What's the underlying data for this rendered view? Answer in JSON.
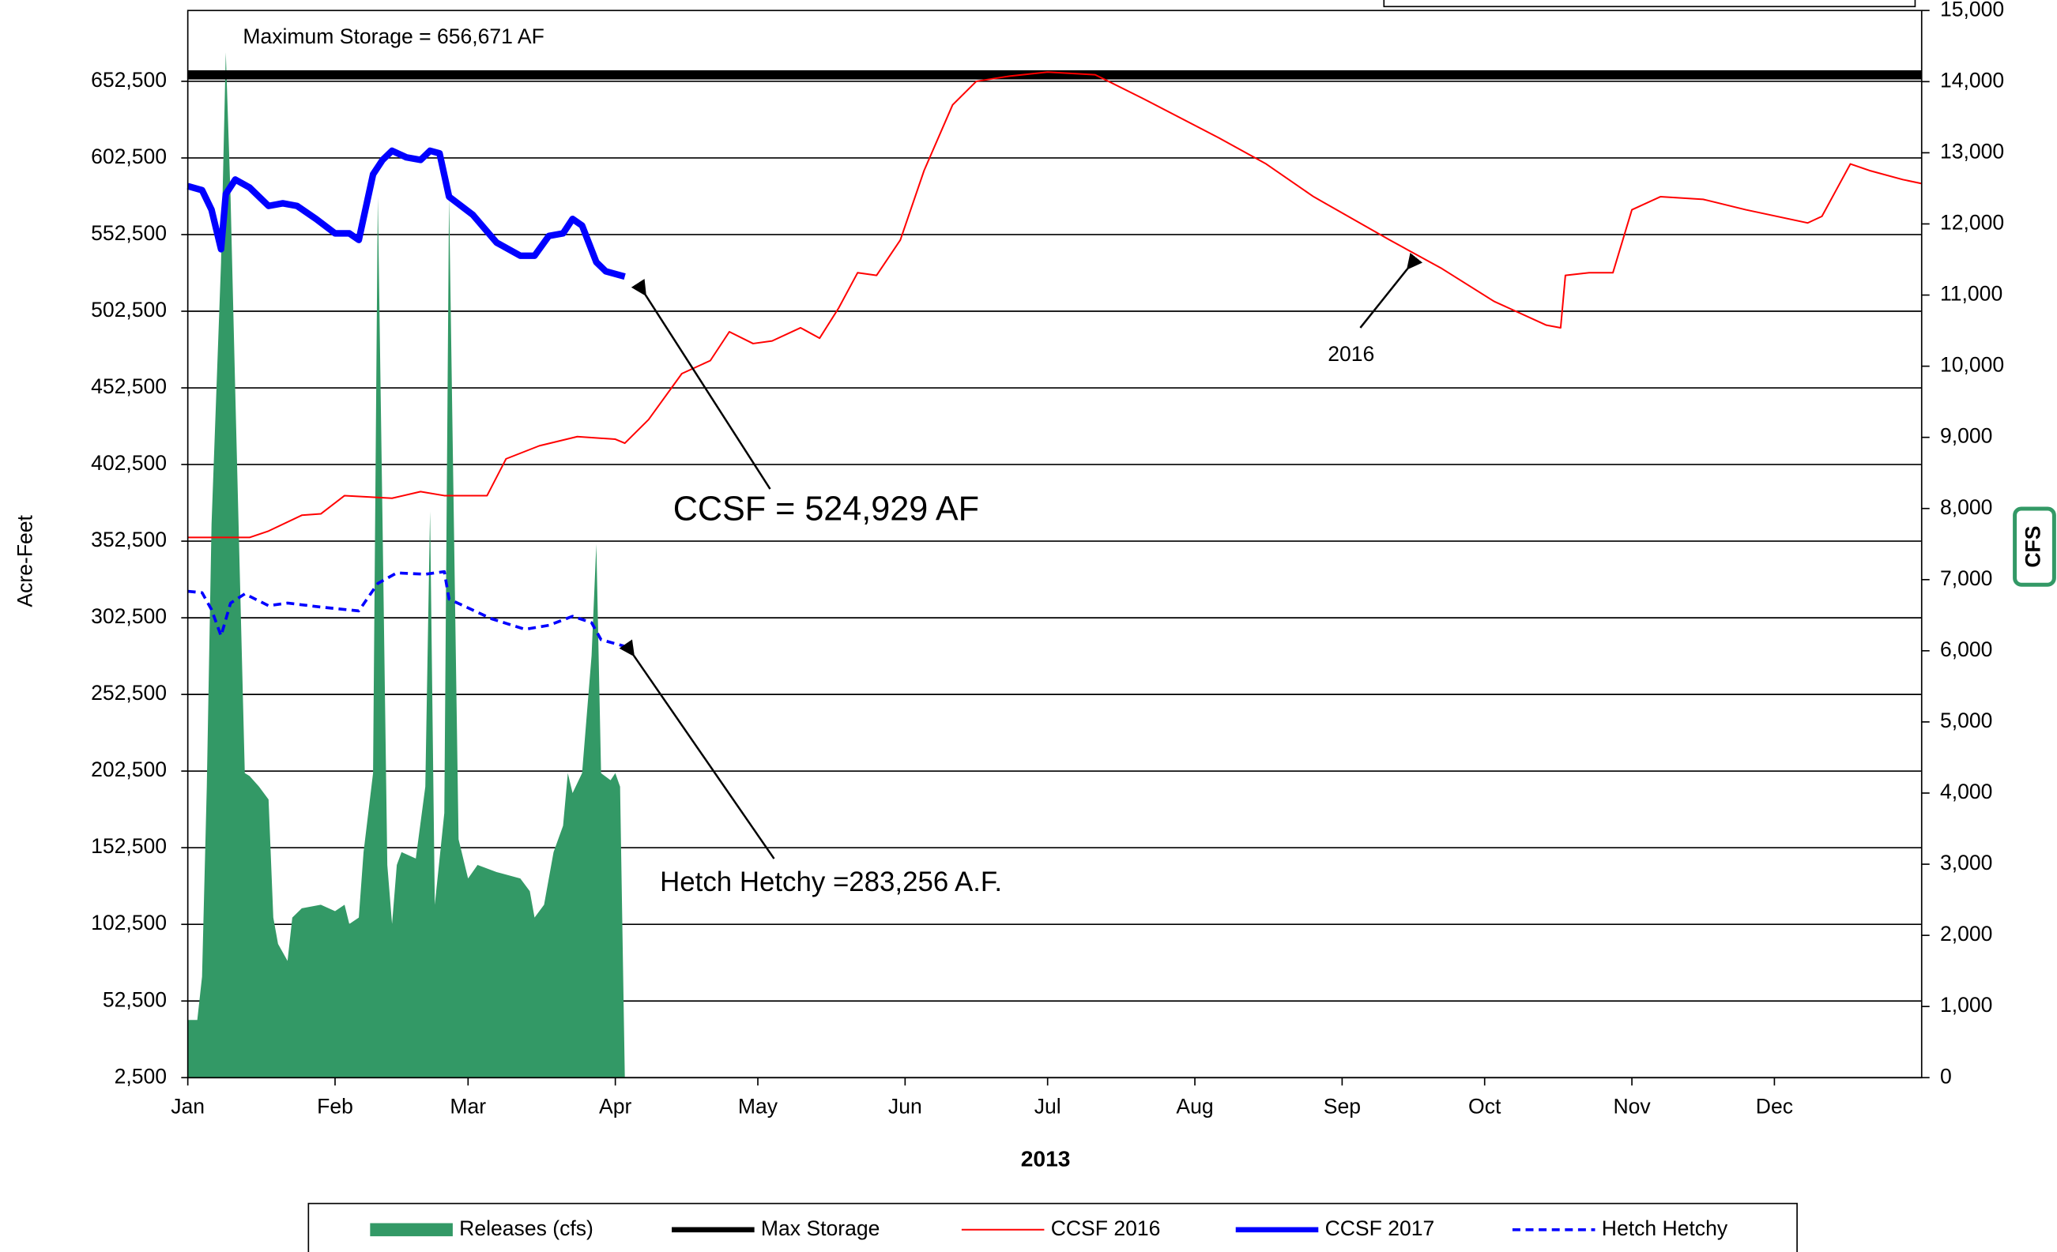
{
  "chart_data": {
    "type": "line",
    "annotations": [
      "Maximum Storage = 656,671 AF",
      "CCSF = 524,929 AF",
      "Hetch Hetchy =283,256 A.F.",
      "2016"
    ],
    "ylabel": "Acre-Feet",
    "y2label": "CFS",
    "xlabel": "2013",
    "xlim": [
      0,
      365
    ],
    "xticks": [
      {
        "value": 0,
        "label": "Jan"
      },
      {
        "value": 31,
        "label": "Feb"
      },
      {
        "value": 59,
        "label": "Mar"
      },
      {
        "value": 90,
        "label": "Apr"
      },
      {
        "value": 120,
        "label": "May"
      },
      {
        "value": 151,
        "label": "Jun"
      },
      {
        "value": 181,
        "label": "Jul"
      },
      {
        "value": 212,
        "label": "Aug"
      },
      {
        "value": 243,
        "label": "Sep"
      },
      {
        "value": 273,
        "label": "Oct"
      },
      {
        "value": 304,
        "label": "Nov"
      },
      {
        "value": 334,
        "label": "Dec"
      }
    ],
    "ylim": [
      2500,
      698700
    ],
    "yticks": [
      {
        "value": 2500,
        "label": "2,500"
      },
      {
        "value": 52500,
        "label": "52,500"
      },
      {
        "value": 102500,
        "label": "102,500"
      },
      {
        "value": 152500,
        "label": "152,500"
      },
      {
        "value": 202500,
        "label": "202,500"
      },
      {
        "value": 252500,
        "label": "252,500"
      },
      {
        "value": 302500,
        "label": "302,500"
      },
      {
        "value": 352500,
        "label": "352,500"
      },
      {
        "value": 402500,
        "label": "402,500"
      },
      {
        "value": 452500,
        "label": "452,500"
      },
      {
        "value": 502500,
        "label": "502,500"
      },
      {
        "value": 552500,
        "label": "552,500"
      },
      {
        "value": 602500,
        "label": "602,500"
      },
      {
        "value": 652500,
        "label": "652,500"
      }
    ],
    "y2lim": [
      0,
      15000
    ],
    "y2ticks": [
      0,
      {
        "value": 1000,
        "label": "1,000"
      },
      {
        "value": 2000,
        "label": "2,000"
      },
      {
        "value": 3000,
        "label": "3,000"
      },
      {
        "value": 4000,
        "label": "4,000"
      },
      {
        "value": 5000,
        "label": "5,000"
      },
      {
        "value": 6000,
        "label": "6,000"
      },
      {
        "value": 7000,
        "label": "7,000"
      },
      {
        "value": 8000,
        "label": "8,000"
      },
      {
        "value": 9000,
        "label": "9,000"
      },
      {
        "value": 10000,
        "label": "10,000"
      },
      {
        "value": 11000,
        "label": "11,000"
      },
      {
        "value": 12000,
        "label": "12,000"
      },
      {
        "value": 13000,
        "label": "13,000"
      },
      {
        "value": 14000,
        "label": "14,000"
      },
      {
        "value": 15000,
        "label": "15,000"
      }
    ],
    "grid": true,
    "legend": "bottom",
    "series": [
      {
        "name": "Releases (cfs)",
        "color": "#339966",
        "kind": "area",
        "axis": "y2",
        "x": [
          0,
          2,
          3,
          4,
          5,
          7,
          8,
          9,
          10,
          12,
          13,
          15,
          17,
          18,
          19,
          21,
          22,
          24,
          28,
          31,
          33,
          34,
          36,
          37,
          39,
          40,
          41,
          42,
          43,
          44,
          45,
          48,
          50,
          51,
          52,
          54,
          55,
          57,
          59,
          61,
          65,
          70,
          72,
          73,
          75,
          77,
          79,
          80,
          81,
          83,
          85,
          86,
          87,
          89,
          90,
          91,
          92
        ],
        "values": [
          811,
          811,
          1419,
          4090,
          7780,
          11460,
          14410,
          12380,
          9620,
          4280,
          4240,
          4090,
          3910,
          2250,
          1880,
          1640,
          2250,
          2380,
          2430,
          2340,
          2430,
          2160,
          2250,
          3170,
          4280,
          12380,
          7780,
          2990,
          2160,
          2990,
          3170,
          3080,
          4090,
          7960,
          2430,
          3720,
          12380,
          3350,
          2800,
          2990,
          2890,
          2800,
          2620,
          2250,
          2430,
          3170,
          3540,
          4280,
          4000,
          4280,
          5930,
          7500,
          4280,
          4180,
          4280,
          4090,
          0
        ]
      },
      {
        "name": "Max Storage",
        "color": "#000000",
        "kind": "line",
        "width": 7,
        "x": [
          0,
          365
        ],
        "values": [
          656671,
          656671
        ]
      },
      {
        "name": "CCSF 2016",
        "color": "#ff0000",
        "kind": "line",
        "width": 1.2,
        "x": [
          0,
          13,
          17,
          24,
          28,
          33,
          43,
          49,
          54,
          63,
          67,
          74,
          82,
          90,
          92,
          97,
          104,
          110,
          114,
          119,
          123,
          129,
          133,
          137,
          141,
          145,
          150,
          155,
          161,
          166,
          173,
          181,
          191,
          201,
          217,
          227,
          237,
          253,
          264,
          275,
          286,
          289,
          290,
          295,
          300,
          304,
          310,
          319,
          328,
          341,
          344,
          347,
          350,
          354,
          361,
          365
        ],
        "values": [
          354900,
          354900,
          359100,
          369400,
          370300,
          382200,
          380500,
          384800,
          382200,
          382200,
          406200,
          414700,
          420700,
          419000,
          416400,
          431800,
          461800,
          470300,
          489100,
          481400,
          483100,
          491700,
          484900,
          504500,
          527600,
          525900,
          549000,
          594300,
          637100,
          652500,
          655900,
          658500,
          656800,
          641400,
          615700,
          598600,
          577200,
          549000,
          530300,
          508900,
          493400,
          491700,
          525900,
          527600,
          527600,
          568700,
          577200,
          575500,
          568700,
          560100,
          564400,
          581500,
          598600,
          594300,
          588400,
          585800
        ]
      },
      {
        "name": "CCSF 2017",
        "color": "#0000ff",
        "kind": "line",
        "width": 5,
        "x": [
          0,
          3,
          5,
          7,
          8,
          10,
          13,
          17,
          20,
          23,
          27,
          31,
          34,
          36,
          39,
          41,
          43,
          46,
          49,
          51,
          53,
          55,
          60,
          65,
          70,
          73,
          76,
          79,
          81,
          83,
          86,
          88,
          92
        ],
        "values": [
          584100,
          581500,
          568700,
          543000,
          578900,
          588400,
          583200,
          571200,
          572900,
          571200,
          562700,
          553300,
          553300,
          549000,
          591800,
          601200,
          607200,
          602900,
          601200,
          607200,
          605500,
          577200,
          565400,
          547300,
          538700,
          538700,
          551600,
          553300,
          562700,
          558400,
          534500,
          528500,
          525100
        ]
      },
      {
        "name": "Hetch Hetchy",
        "color": "#0000ff",
        "kind": "line",
        "width": 2.2,
        "dashed": true,
        "x": [
          0,
          3,
          5,
          7,
          9,
          12,
          17,
          21,
          28,
          36,
          40,
          44,
          50,
          54,
          55,
          64,
          71,
          76,
          81,
          85,
          87,
          92
        ],
        "values": [
          319800,
          318900,
          307800,
          290700,
          312100,
          318100,
          310400,
          312100,
          309500,
          307000,
          324900,
          331800,
          330900,
          332600,
          314700,
          301800,
          295000,
          297600,
          303500,
          299300,
          288200,
          283900
        ]
      }
    ]
  }
}
